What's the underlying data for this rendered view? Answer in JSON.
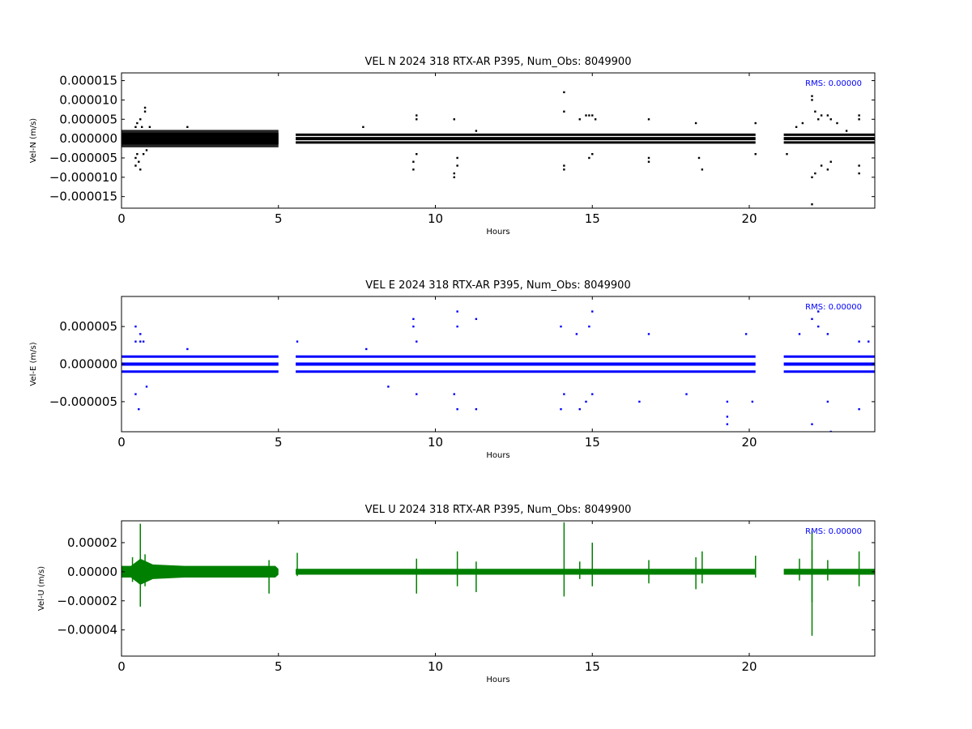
{
  "chart_data": [
    {
      "type": "scatter",
      "title": "VEL N 2024 318 RTX-AR  P395, Num_Obs: 8049900",
      "xlabel": "Hours",
      "ylabel": "Vel-N (m/s)",
      "xlim": [
        0,
        24
      ],
      "ylim": [
        -1.8e-05,
        1.7e-05
      ],
      "xticks": [
        0,
        5,
        10,
        15,
        20
      ],
      "xtick_labels": [
        "0",
        "5",
        "10",
        "15",
        "20"
      ],
      "yticks": [
        1.5e-05,
        1e-05,
        5e-06,
        0,
        -5e-06,
        -1e-05,
        -1.5e-05
      ],
      "ytick_labels": [
        "0.000015",
        "0.000010",
        "0.000005",
        "0.000000",
        "−0.000005",
        "−0.000010",
        "−0.000015"
      ],
      "annotation": "RMS:  0.00000",
      "color": "#000000",
      "grid": false,
      "data_segments_hours": [
        [
          0,
          5.0
        ],
        [
          5.55,
          20.2
        ],
        [
          21.1,
          24
        ]
      ],
      "bands": [
        1e-06,
        0,
        -1e-06
      ],
      "dense_until_hours": 5.0,
      "outliers": [
        [
          0.45,
          3e-06
        ],
        [
          0.45,
          -5e-06
        ],
        [
          0.45,
          -7e-06
        ],
        [
          0.5,
          4e-06
        ],
        [
          0.5,
          -4e-06
        ],
        [
          0.55,
          -6e-06
        ],
        [
          0.6,
          5e-06
        ],
        [
          0.6,
          -8e-06
        ],
        [
          0.65,
          3e-06
        ],
        [
          0.7,
          -4e-06
        ],
        [
          0.75,
          8e-06
        ],
        [
          0.75,
          7e-06
        ],
        [
          0.8,
          -3e-06
        ],
        [
          0.9,
          3e-06
        ],
        [
          2.1,
          3e-06
        ],
        [
          7.7,
          3e-06
        ],
        [
          9.3,
          -8e-06
        ],
        [
          9.3,
          -6e-06
        ],
        [
          9.4,
          6e-06
        ],
        [
          9.4,
          5e-06
        ],
        [
          9.4,
          -4e-06
        ],
        [
          10.6,
          5e-06
        ],
        [
          10.6,
          -9e-06
        ],
        [
          10.6,
          -1e-05
        ],
        [
          10.7,
          -7e-06
        ],
        [
          10.7,
          -5e-06
        ],
        [
          11.3,
          2e-06
        ],
        [
          14.1,
          1.2e-05
        ],
        [
          14.1,
          7e-06
        ],
        [
          14.1,
          -7e-06
        ],
        [
          14.1,
          -8e-06
        ],
        [
          14.6,
          5e-06
        ],
        [
          14.8,
          6e-06
        ],
        [
          14.9,
          6e-06
        ],
        [
          14.9,
          -5e-06
        ],
        [
          15.0,
          6e-06
        ],
        [
          15.0,
          -4e-06
        ],
        [
          15.1,
          5e-06
        ],
        [
          16.8,
          5e-06
        ],
        [
          16.8,
          -6e-06
        ],
        [
          16.8,
          -5e-06
        ],
        [
          18.3,
          4e-06
        ],
        [
          18.4,
          -5e-06
        ],
        [
          18.5,
          -8e-06
        ],
        [
          20.2,
          4e-06
        ],
        [
          20.2,
          -4e-06
        ],
        [
          21.2,
          -4e-06
        ],
        [
          21.5,
          3e-06
        ],
        [
          21.7,
          4e-06
        ],
        [
          22.0,
          1.1e-05
        ],
        [
          22.0,
          1e-05
        ],
        [
          22.0,
          -1e-05
        ],
        [
          22.0,
          -1.7e-05
        ],
        [
          22.1,
          7e-06
        ],
        [
          22.1,
          -9e-06
        ],
        [
          22.2,
          5e-06
        ],
        [
          22.3,
          6e-06
        ],
        [
          22.3,
          -7e-06
        ],
        [
          22.5,
          6e-06
        ],
        [
          22.5,
          -8e-06
        ],
        [
          22.6,
          5e-06
        ],
        [
          22.6,
          -6e-06
        ],
        [
          22.8,
          4e-06
        ],
        [
          23.1,
          2e-06
        ],
        [
          23.5,
          6e-06
        ],
        [
          23.5,
          5e-06
        ],
        [
          23.5,
          -9e-06
        ],
        [
          23.5,
          -7e-06
        ]
      ]
    },
    {
      "type": "scatter",
      "title": "VEL E 2024 318 RTX-AR  P395, Num_Obs: 8049900",
      "xlabel": "Hours",
      "ylabel": "Vel-E (m/s)",
      "xlim": [
        0,
        24
      ],
      "ylim": [
        -9e-06,
        9e-06
      ],
      "xticks": [
        0,
        5,
        10,
        15,
        20
      ],
      "xtick_labels": [
        "0",
        "5",
        "10",
        "15",
        "20"
      ],
      "yticks": [
        5e-06,
        0,
        -5e-06
      ],
      "ytick_labels": [
        "0.000005",
        "0.000000",
        "−0.000005"
      ],
      "annotation": "RMS:  0.00000",
      "color": "#0000ff",
      "grid": false,
      "data_segments_hours": [
        [
          0,
          5.0
        ],
        [
          5.55,
          20.2
        ],
        [
          21.1,
          24
        ]
      ],
      "bands": [
        1e-06,
        0,
        -1e-06
      ],
      "dense_until_hours": 0,
      "outliers": [
        [
          0.45,
          5e-06
        ],
        [
          0.45,
          3e-06
        ],
        [
          0.45,
          -4e-06
        ],
        [
          0.55,
          -6e-06
        ],
        [
          0.6,
          4e-06
        ],
        [
          0.6,
          3e-06
        ],
        [
          0.7,
          3e-06
        ],
        [
          0.8,
          -3e-06
        ],
        [
          2.1,
          2e-06
        ],
        [
          5.6,
          3e-06
        ],
        [
          7.8,
          2e-06
        ],
        [
          8.5,
          -3e-06
        ],
        [
          9.3,
          6e-06
        ],
        [
          9.3,
          5e-06
        ],
        [
          9.4,
          3e-06
        ],
        [
          9.4,
          -4e-06
        ],
        [
          10.7,
          7e-06
        ],
        [
          10.7,
          5e-06
        ],
        [
          10.7,
          -6e-06
        ],
        [
          10.6,
          -4e-06
        ],
        [
          11.3,
          6e-06
        ],
        [
          11.3,
          -6e-06
        ],
        [
          14.0,
          5e-06
        ],
        [
          14.0,
          -6e-06
        ],
        [
          14.1,
          -4e-06
        ],
        [
          14.5,
          4e-06
        ],
        [
          14.6,
          -6e-06
        ],
        [
          14.8,
          -5e-06
        ],
        [
          14.9,
          5e-06
        ],
        [
          15.0,
          7e-06
        ],
        [
          15.0,
          -4e-06
        ],
        [
          16.5,
          -5e-06
        ],
        [
          16.8,
          4e-06
        ],
        [
          18.0,
          -4e-06
        ],
        [
          19.3,
          -8e-06
        ],
        [
          19.3,
          -7e-06
        ],
        [
          19.3,
          -5e-06
        ],
        [
          19.9,
          4e-06
        ],
        [
          20.1,
          -5e-06
        ],
        [
          21.6,
          4e-06
        ],
        [
          22.0,
          6e-06
        ],
        [
          22.0,
          -8e-06
        ],
        [
          22.2,
          5e-06
        ],
        [
          22.2,
          7e-06
        ],
        [
          22.5,
          4e-06
        ],
        [
          22.5,
          -5e-06
        ],
        [
          22.6,
          -9e-06
        ],
        [
          23.5,
          3e-06
        ],
        [
          23.5,
          -6e-06
        ],
        [
          23.8,
          3e-06
        ]
      ]
    },
    {
      "type": "line",
      "title": "VEL U 2024 318 RTX-AR  P395, Num_Obs: 8049900",
      "xlabel": "Hours",
      "ylabel": "Vel-U (m/s)",
      "xlim": [
        0,
        24
      ],
      "ylim": [
        -5.8e-05,
        3.5e-05
      ],
      "xticks": [
        0,
        5,
        10,
        15,
        20
      ],
      "xtick_labels": [
        "0",
        "5",
        "10",
        "15",
        "20"
      ],
      "yticks": [
        2e-05,
        0,
        -2e-05,
        -4e-05
      ],
      "ytick_labels": [
        "0.00002",
        "0.00000",
        "−0.00002",
        "−0.00004"
      ],
      "annotation": "RMS:  0.00000",
      "color": "#008000",
      "grid": false,
      "data_segments_hours": [
        [
          0,
          5.0
        ],
        [
          5.55,
          20.2
        ],
        [
          21.1,
          24
        ]
      ],
      "envelope": [
        [
          0.0,
          4e-06
        ],
        [
          0.3,
          4e-06
        ],
        [
          0.6,
          9e-06
        ],
        [
          1.0,
          5e-06
        ],
        [
          2.0,
          4e-06
        ],
        [
          3.0,
          4e-06
        ],
        [
          4.0,
          4e-06
        ],
        [
          4.9,
          4e-06
        ],
        [
          5.0,
          2e-06
        ],
        [
          5.55,
          2e-06
        ],
        [
          20.2,
          2e-06
        ],
        [
          21.1,
          2e-06
        ],
        [
          24.0,
          2e-06
        ]
      ],
      "spikes": [
        [
          0.35,
          1e-05,
          -7e-06
        ],
        [
          0.6,
          3.3e-05,
          -2.4e-05
        ],
        [
          0.75,
          1.2e-05,
          -1e-05
        ],
        [
          4.7,
          8e-06,
          -1.5e-05
        ],
        [
          5.6,
          1.3e-05,
          -3e-06
        ],
        [
          9.4,
          9e-06,
          -1.5e-05
        ],
        [
          10.7,
          1.4e-05,
          -1e-05
        ],
        [
          11.3,
          7e-06,
          -1.4e-05
        ],
        [
          14.1,
          3.4e-05,
          -1.7e-05
        ],
        [
          14.6,
          7e-06,
          -5e-06
        ],
        [
          15.0,
          2e-05,
          -1e-05
        ],
        [
          16.8,
          8e-06,
          -8e-06
        ],
        [
          18.3,
          1e-05,
          -1.2e-05
        ],
        [
          18.5,
          1.4e-05,
          -8e-06
        ],
        [
          20.2,
          1.1e-05,
          -4e-06
        ],
        [
          21.6,
          9e-06,
          -6e-06
        ],
        [
          22.0,
          2.8e-05,
          -4.4e-05
        ],
        [
          22.0,
          1.5e-05,
          -2.1e-05
        ],
        [
          22.5,
          8e-06,
          -6e-06
        ],
        [
          23.5,
          1.4e-05,
          -1e-05
        ]
      ]
    }
  ]
}
